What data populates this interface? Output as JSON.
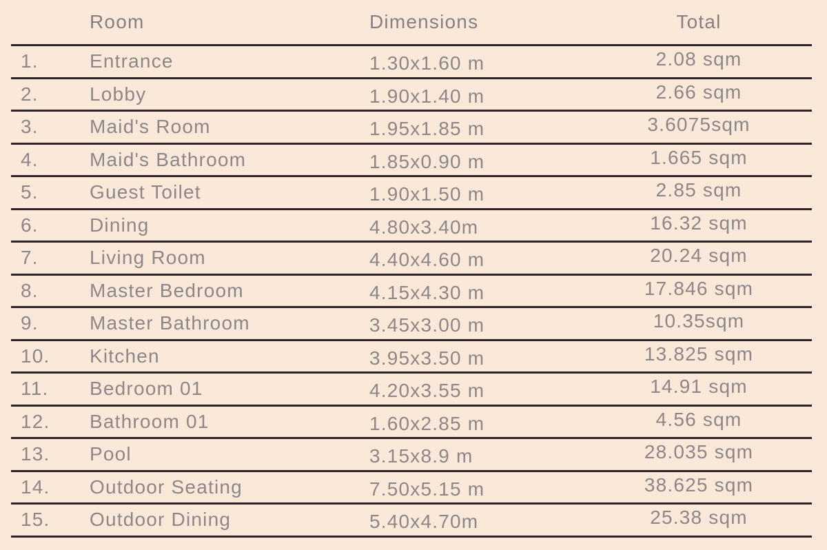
{
  "colors": {
    "background": "#fae8d8",
    "text": "#8d8789",
    "line": "#2b2325"
  },
  "table": {
    "headers": {
      "room": "Room",
      "dimensions": "Dimensions",
      "total": "Total"
    },
    "rows": [
      {
        "num": "1.",
        "room": "Entrance",
        "dimensions": "1.30x1.60 m",
        "total": "2.08 sqm"
      },
      {
        "num": "2.",
        "room": "Lobby",
        "dimensions": "1.90x1.40 m",
        "total": "2.66 sqm"
      },
      {
        "num": "3.",
        "room": "Maid's Room",
        "dimensions": "1.95x1.85 m",
        "total": "3.6075sqm"
      },
      {
        "num": "4.",
        "room": "Maid's Bathroom",
        "dimensions": "1.85x0.90 m",
        "total": "1.665 sqm"
      },
      {
        "num": "5.",
        "room": "Guest Toilet",
        "dimensions": "1.90x1.50 m",
        "total": "2.85 sqm"
      },
      {
        "num": "6.",
        "room": "Dining",
        "dimensions": "4.80x3.40m",
        "total": "16.32 sqm"
      },
      {
        "num": "7.",
        "room": "Living Room",
        "dimensions": "4.40x4.60 m",
        "total": "20.24 sqm"
      },
      {
        "num": "8.",
        "room": "Master Bedroom",
        "dimensions": "4.15x4.30 m",
        "total": "17.846 sqm"
      },
      {
        "num": "9.",
        "room": "Master Bathroom",
        "dimensions": "3.45x3.00 m",
        "total": "10.35sqm"
      },
      {
        "num": "10.",
        "room": "Kitchen",
        "dimensions": "3.95x3.50 m",
        "total": "13.825 sqm"
      },
      {
        "num": "11.",
        "room": "Bedroom 01",
        "dimensions": "4.20x3.55 m",
        "total": "14.91 sqm"
      },
      {
        "num": "12.",
        "room": "Bathroom 01",
        "dimensions": "1.60x2.85 m",
        "total": "4.56 sqm"
      },
      {
        "num": "13.",
        "room": "Pool",
        "dimensions": "3.15x8.9 m",
        "total": "28.035 sqm"
      },
      {
        "num": "14.",
        "room": "Outdoor Seating",
        "dimensions": "7.50x5.15 m",
        "total": "38.625 sqm"
      },
      {
        "num": "15.",
        "room": "Outdoor Dining",
        "dimensions": "5.40x4.70m",
        "total": "25.38 sqm"
      }
    ]
  }
}
